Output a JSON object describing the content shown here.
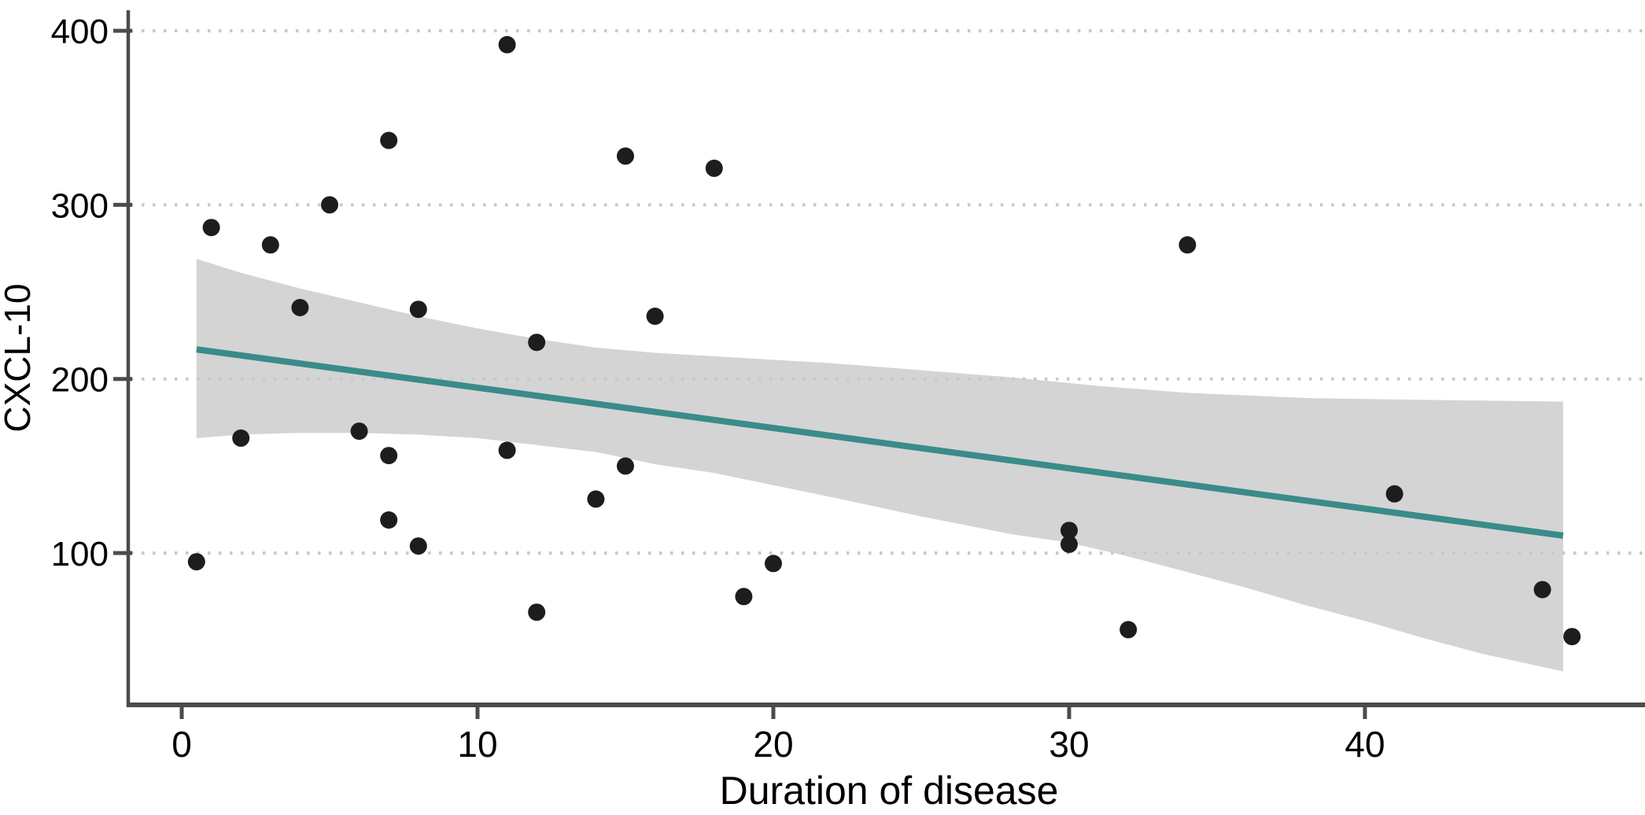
{
  "figure": {
    "background": "#ffffff"
  },
  "chart_data": {
    "type": "scatter",
    "title": "",
    "xlabel": "Duration of disease",
    "ylabel": "CXCL-10",
    "x_ticks": [
      0,
      10,
      20,
      30,
      40
    ],
    "y_ticks": [
      100,
      200,
      300,
      400
    ],
    "xlim": [
      -1.8,
      49.5
    ],
    "ylim": [
      13,
      412
    ],
    "grid": "horizontal-dotted",
    "legend": "none",
    "points": [
      [
        0.5,
        95
      ],
      [
        1,
        287
      ],
      [
        2,
        166
      ],
      [
        3,
        277
      ],
      [
        4,
        241
      ],
      [
        5,
        300
      ],
      [
        6,
        170
      ],
      [
        7,
        337
      ],
      [
        7,
        156
      ],
      [
        7,
        119
      ],
      [
        8,
        240
      ],
      [
        8,
        104
      ],
      [
        11,
        392
      ],
      [
        11,
        159
      ],
      [
        12,
        221
      ],
      [
        12,
        66
      ],
      [
        14,
        131
      ],
      [
        15,
        328
      ],
      [
        15,
        150
      ],
      [
        16,
        236
      ],
      [
        18,
        321
      ],
      [
        19,
        75
      ],
      [
        20,
        94
      ],
      [
        30,
        113
      ],
      [
        30,
        105
      ],
      [
        32,
        56
      ],
      [
        34,
        277
      ],
      [
        41,
        134
      ],
      [
        46,
        79
      ],
      [
        47,
        52
      ]
    ],
    "regression_line": {
      "x_start": 0.5,
      "y_start": 217,
      "x_end": 46.7,
      "y_end": 110
    },
    "ci_band": {
      "upper": [
        [
          0.5,
          269
        ],
        [
          2,
          261
        ],
        [
          4,
          252
        ],
        [
          6,
          244
        ],
        [
          8,
          236
        ],
        [
          10,
          229
        ],
        [
          12,
          223
        ],
        [
          14,
          218
        ],
        [
          16,
          215
        ],
        [
          19,
          212
        ],
        [
          22,
          209
        ],
        [
          25,
          205
        ],
        [
          28,
          201
        ],
        [
          31,
          196
        ],
        [
          34,
          192
        ],
        [
          38,
          189
        ],
        [
          42,
          188
        ],
        [
          46.7,
          187
        ]
      ],
      "lower": [
        [
          0.5,
          166
        ],
        [
          2,
          168
        ],
        [
          4,
          169
        ],
        [
          6,
          169
        ],
        [
          8,
          168
        ],
        [
          10,
          166
        ],
        [
          12,
          162
        ],
        [
          14,
          158
        ],
        [
          16,
          151
        ],
        [
          18,
          146
        ],
        [
          20,
          139
        ],
        [
          22,
          132
        ],
        [
          25,
          121
        ],
        [
          28,
          111
        ],
        [
          30,
          106
        ],
        [
          32,
          98
        ],
        [
          34,
          89
        ],
        [
          36,
          80
        ],
        [
          38,
          70
        ],
        [
          40,
          61
        ],
        [
          42,
          51
        ],
        [
          44,
          42
        ],
        [
          46.7,
          32
        ]
      ]
    },
    "colors": {
      "point": "#1d1d1d",
      "line": "#3a8b89",
      "band": "#d4d4d4",
      "grid": "#c8c8c8",
      "axis": "#4b4b4b",
      "text": "#000000"
    }
  }
}
